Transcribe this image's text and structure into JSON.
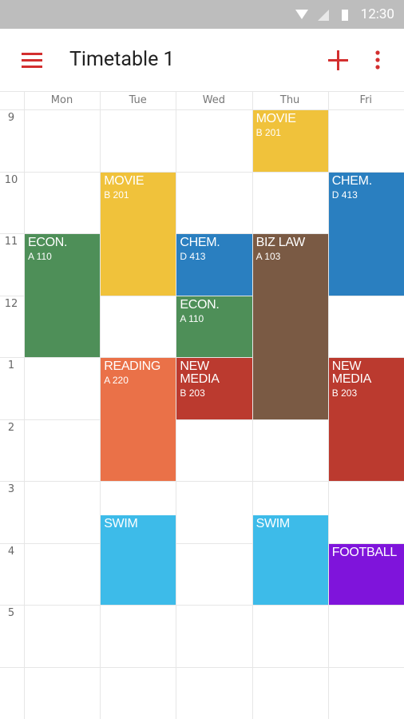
{
  "status_bar": {
    "time": "12:30"
  },
  "app_bar": {
    "title": "Timetable 1"
  },
  "days": [
    "Mon",
    "Tue",
    "Wed",
    "Thu",
    "Fri"
  ],
  "hours": [
    "9",
    "10",
    "11",
    "12",
    "1",
    "2",
    "3",
    "4",
    "5"
  ],
  "events": [
    {
      "title": "MOVIE",
      "room": "B 201"
    },
    {
      "title": "MOVIE",
      "room": "B 201"
    },
    {
      "title": "CHEM.",
      "room": "D 413"
    },
    {
      "title": "ECON.",
      "room": "A 110"
    },
    {
      "title": "CHEM.",
      "room": "D 413"
    },
    {
      "title": "BIZ LAW",
      "room": "A 103"
    },
    {
      "title": "ECON.",
      "room": "A 110"
    },
    {
      "title": "READING",
      "room": "A 220"
    },
    {
      "title": "NEW MEDIA",
      "room": "B 203"
    },
    {
      "title": "NEW MEDIA",
      "room": "B 203"
    },
    {
      "title": "SWIM"
    },
    {
      "title": "SWIM"
    },
    {
      "title": "FOOTBALL"
    }
  ]
}
